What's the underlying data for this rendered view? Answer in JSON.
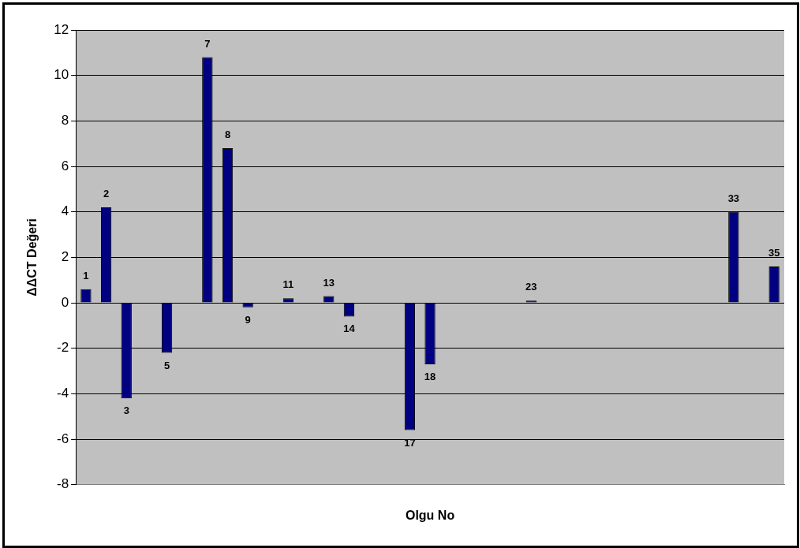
{
  "chart_data": {
    "type": "bar",
    "xlabel": "Olgu No",
    "ylabel": "ΔΔCT Değeri",
    "categories": [
      "1",
      "2",
      "3",
      null,
      "5",
      null,
      "7",
      "8",
      "9",
      null,
      "11",
      null,
      "13",
      "14",
      null,
      null,
      "17",
      "18",
      null,
      null,
      null,
      null,
      "23",
      null,
      null,
      null,
      null,
      null,
      null,
      null,
      null,
      null,
      "33",
      null,
      "35"
    ],
    "values": [
      0.6,
      4.2,
      -4.2,
      null,
      -2.2,
      null,
      10.8,
      6.8,
      -0.2,
      null,
      0.2,
      null,
      0.3,
      -0.6,
      null,
      null,
      -5.6,
      -2.7,
      null,
      null,
      null,
      null,
      0.1,
      null,
      null,
      null,
      null,
      null,
      null,
      null,
      null,
      null,
      4.0,
      null,
      1.6
    ],
    "color": "#000080",
    "ylim": [
      -8,
      12
    ],
    "yticks": [
      -8,
      -6,
      -4,
      -2,
      0,
      2,
      4,
      6,
      8,
      10,
      12
    ],
    "grid": "y",
    "tick_labels": "y",
    "legend": false
  }
}
